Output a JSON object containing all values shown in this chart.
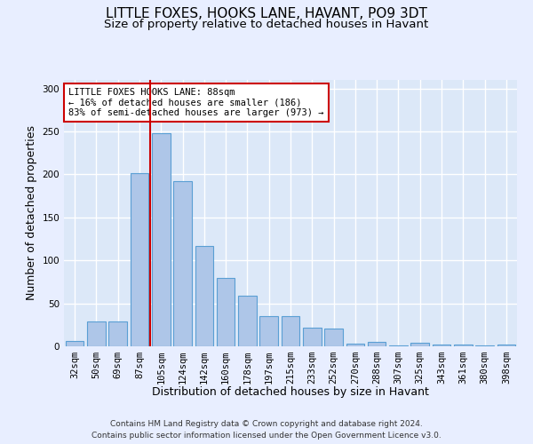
{
  "title": "LITTLE FOXES, HOOKS LANE, HAVANT, PO9 3DT",
  "subtitle": "Size of property relative to detached houses in Havant",
  "xlabel": "Distribution of detached houses by size in Havant",
  "ylabel": "Number of detached properties",
  "categories": [
    "32sqm",
    "50sqm",
    "69sqm",
    "87sqm",
    "105sqm",
    "124sqm",
    "142sqm",
    "160sqm",
    "178sqm",
    "197sqm",
    "215sqm",
    "233sqm",
    "252sqm",
    "270sqm",
    "288sqm",
    "307sqm",
    "325sqm",
    "343sqm",
    "361sqm",
    "380sqm",
    "398sqm"
  ],
  "values": [
    6,
    29,
    29,
    202,
    248,
    192,
    117,
    80,
    59,
    35,
    35,
    22,
    21,
    3,
    5,
    1,
    4,
    2,
    2,
    1,
    2
  ],
  "bar_color": "#aec6e8",
  "bar_edge_color": "#5a9fd4",
  "vline_x_index": 3,
  "vline_color": "#cc0000",
  "annotation_text": "LITTLE FOXES HOOKS LANE: 88sqm\n← 16% of detached houses are smaller (186)\n83% of semi-detached houses are larger (973) →",
  "annotation_box_color": "#ffffff",
  "annotation_box_edge": "#cc0000",
  "ylim": [
    0,
    310
  ],
  "yticks": [
    0,
    50,
    100,
    150,
    200,
    250,
    300
  ],
  "footer": "Contains HM Land Registry data © Crown copyright and database right 2024.\nContains public sector information licensed under the Open Government Licence v3.0.",
  "bg_color": "#e8eeff",
  "plot_bg_color": "#dce8f8",
  "grid_color": "#ffffff",
  "title_fontsize": 11,
  "subtitle_fontsize": 9.5,
  "tick_fontsize": 7.5,
  "ylabel_fontsize": 9,
  "xlabel_fontsize": 9,
  "footer_fontsize": 6.5
}
